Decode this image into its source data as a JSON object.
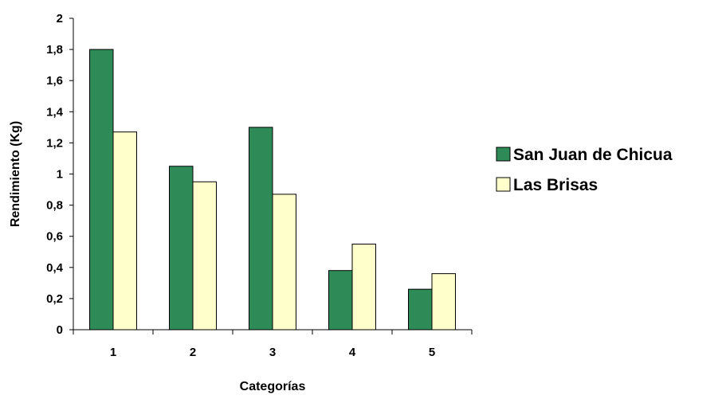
{
  "chart_data": {
    "type": "bar",
    "title": "",
    "xlabel": "Categorías",
    "ylabel": "Rendimiento (Kg)",
    "categories": [
      "1",
      "2",
      "3",
      "4",
      "5"
    ],
    "ylim": [
      0,
      2
    ],
    "yticks": [
      "0",
      "0,2",
      "0,4",
      "0,6",
      "0,8",
      "1",
      "1,2",
      "1,4",
      "1,6",
      "1,8",
      "2"
    ],
    "grid": false,
    "legend_position": "right",
    "series": [
      {
        "name": "San Juan de Chicua",
        "color": "#2e8b57",
        "values": [
          1.8,
          1.05,
          1.3,
          0.38,
          0.26
        ]
      },
      {
        "name": "Las Brisas",
        "color": "#ffffcc",
        "values": [
          1.27,
          0.95,
          0.87,
          0.55,
          0.36
        ]
      }
    ]
  }
}
